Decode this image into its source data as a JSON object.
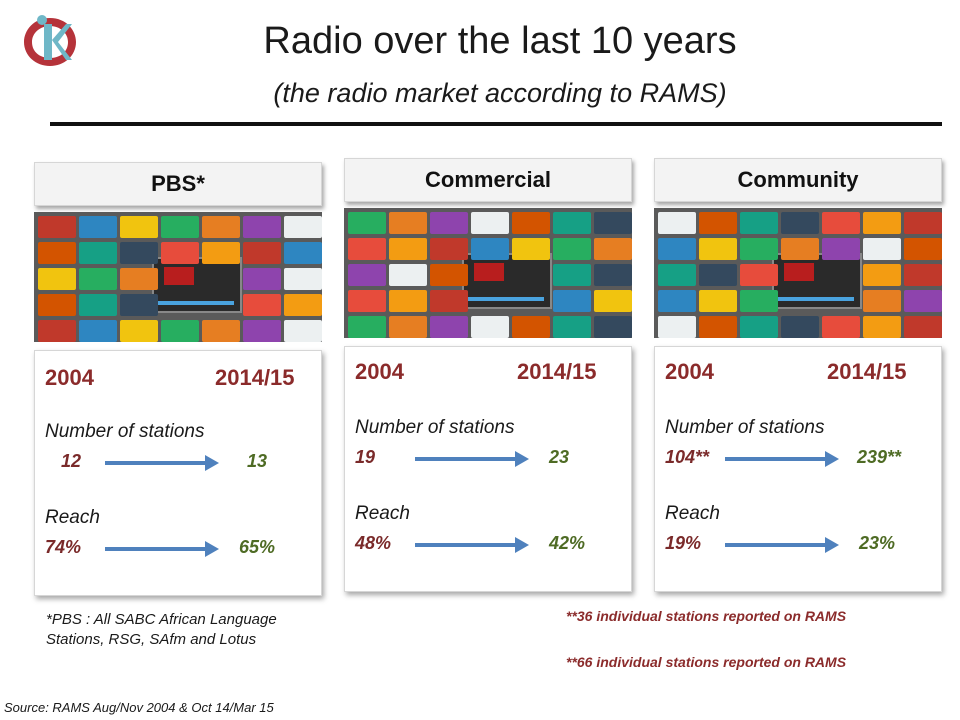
{
  "title": "Radio over the last 10 years",
  "subtitle": "(the radio market according to RAMS)",
  "panels": [
    {
      "header": "PBS*",
      "year_from": "2004",
      "year_to": "2014/15",
      "stations_label": "Number of stations",
      "stations_from": "12",
      "stations_to": "13",
      "reach_label": "Reach",
      "reach_from": "74%",
      "reach_to": "65%"
    },
    {
      "header": "Commercial",
      "year_from": "2004",
      "year_to": "2014/15",
      "stations_label": "Number of stations",
      "stations_from": "19",
      "stations_to": "23",
      "reach_label": "Reach",
      "reach_from": "48%",
      "reach_to": "42%"
    },
    {
      "header": "Community",
      "year_from": "2004",
      "year_to": "2014/15",
      "stations_label": "Number of stations",
      "stations_from": "104**",
      "stations_to": "239**",
      "reach_label": "Reach",
      "reach_from": "19%",
      "reach_to": "23%"
    }
  ],
  "footnote": "*PBS : All SABC African Language Stations, RSG, SAfm and Lotus",
  "notes": [
    "**36 individual stations reported on RAMS",
    "**66  individual stations reported on RAMS"
  ],
  "source": "Source: RAMS  Aug/Nov 2004 & Oct 14/Mar 15",
  "colors": {
    "year": "#8b2b2b",
    "arrow": "#4f81bd",
    "value_to": "#4e6b24"
  }
}
